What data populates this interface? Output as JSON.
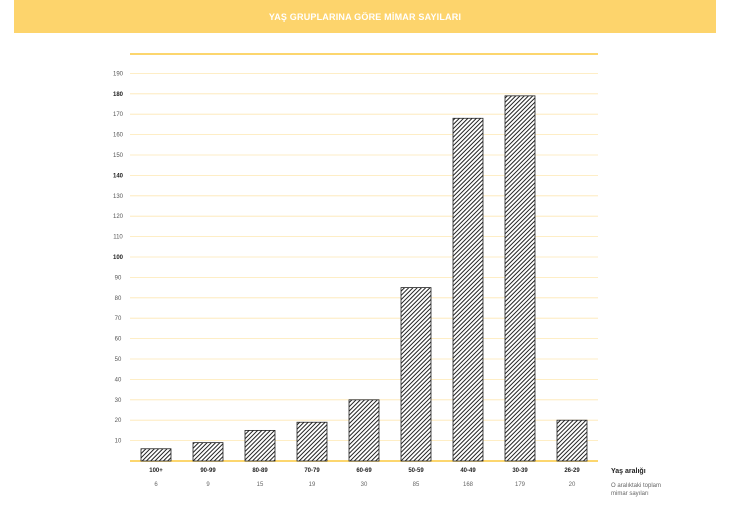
{
  "header": {
    "title": "YAŞ GRUPLARINA GÖRE MİMAR SAYILARI"
  },
  "colors": {
    "banner": "#fdd46c",
    "gridline": "#fde8b4",
    "axis": "#fcc93e",
    "bar_stroke": "#222222"
  },
  "chart_data": {
    "type": "bar",
    "title": "YAŞ GRUPLARINA GÖRE MİMAR SAYILARI",
    "categories": [
      "100+",
      "90-99",
      "80-89",
      "70-79",
      "60-69",
      "50-59",
      "40-49",
      "30-39",
      "26-29"
    ],
    "values": [
      6,
      9,
      15,
      19,
      30,
      85,
      168,
      179,
      20
    ],
    "value_labels": [
      "6",
      "9",
      "15",
      "19",
      "30",
      "85",
      "168",
      "179",
      "20"
    ],
    "yticks": [
      10,
      20,
      30,
      40,
      50,
      60,
      70,
      80,
      90,
      100,
      110,
      120,
      130,
      140,
      150,
      160,
      170,
      180,
      190
    ],
    "ytick_labels": [
      "10",
      "20",
      "30",
      "40",
      "50",
      "60",
      "70",
      "80",
      "90",
      "100",
      "110",
      "120",
      "130",
      "140",
      "150",
      "160",
      "170",
      "180",
      "190"
    ],
    "ylim": [
      0,
      200
    ],
    "xlabel": "Yaş aralığı",
    "value_caption": [
      "O aralıktaki toplam",
      "mimar sayıları"
    ],
    "grid": true
  }
}
